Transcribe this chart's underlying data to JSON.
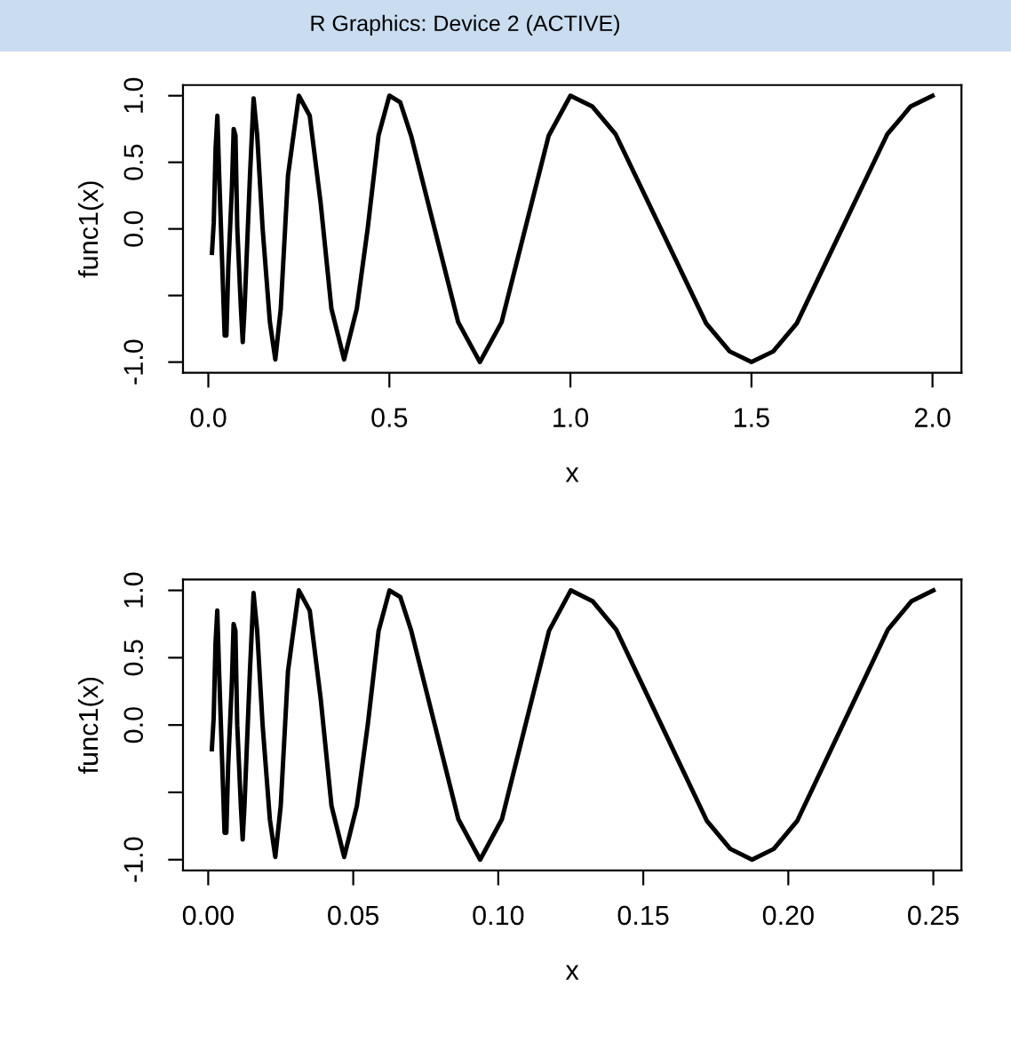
{
  "chart_data": [
    {
      "type": "line",
      "annotations": [
        "R Graphics: Device 2 (ACTIVE)"
      ],
      "xlabel": "x",
      "ylabel": "func1(x)",
      "xlim": [
        -0.07,
        2.08
      ],
      "ylim": [
        -1.08,
        1.08
      ],
      "xticks": [
        {
          "value": 0,
          "label": "0.0"
        },
        {
          "value": 0.5,
          "label": "0.5"
        },
        {
          "value": 1,
          "label": "1.0"
        },
        {
          "value": 1.5,
          "label": "1.5"
        },
        {
          "value": 2,
          "label": "2.0"
        }
      ],
      "yticks": [
        {
          "value": -1,
          "label": "-1.0"
        },
        {
          "value": -0.5,
          "label": null
        },
        {
          "value": 0,
          "label": "0.0"
        },
        {
          "value": 0.5,
          "label": "0.5"
        },
        {
          "value": 1,
          "label": "1.0"
        }
      ],
      "grid": false,
      "marker": "none",
      "line_style": "solid",
      "series": [
        {
          "color": "#000000",
          "x": [
            0.01,
            0.015,
            0.02,
            0.025,
            0.03,
            0.035,
            0.04,
            0.045,
            0.05,
            0.055,
            0.065,
            0.07,
            0.075,
            0.08,
            0.09,
            0.095,
            0.1,
            0.115,
            0.125,
            0.135,
            0.15,
            0.17,
            0.185,
            0.2,
            0.22,
            0.25,
            0.28,
            0.31,
            0.34,
            0.375,
            0.41,
            0.44,
            0.47,
            0.5,
            0.53,
            0.56,
            0.625,
            0.69,
            0.75,
            0.81,
            0.875,
            0.94,
            1.0,
            1.06,
            1.125,
            1.25,
            1.375,
            1.44,
            1.5,
            1.56,
            1.625,
            1.75,
            1.875,
            1.94,
            2.0
          ],
          "values": [
            -0.18,
            0.05,
            0.6,
            0.85,
            0.4,
            0.0,
            -0.4,
            -0.8,
            -0.8,
            -0.3,
            0.3,
            0.75,
            0.7,
            0.0,
            -0.6,
            -0.85,
            -0.6,
            0.4,
            0.98,
            0.7,
            0.0,
            -0.7,
            -0.98,
            -0.6,
            0.4,
            1.0,
            0.85,
            0.2,
            -0.6,
            -0.98,
            -0.6,
            0.0,
            0.7,
            1.0,
            0.95,
            0.7,
            0.0,
            -0.7,
            -1.0,
            -0.7,
            0.0,
            0.7,
            1.0,
            0.92,
            0.71,
            0.0,
            -0.71,
            -0.92,
            -1.0,
            -0.92,
            -0.71,
            0.0,
            0.71,
            0.92,
            1.0
          ]
        }
      ]
    },
    {
      "type": "line",
      "xlabel": "x",
      "ylabel": "func1(x)",
      "xlim": [
        -0.0087,
        0.2597
      ],
      "ylim": [
        -1.08,
        1.08
      ],
      "xticks": [
        {
          "value": 0,
          "label": "0.00"
        },
        0.05,
        {
          "value": 0.1,
          "label": "0.10"
        },
        0.15,
        {
          "value": 0.2,
          "label": "0.20"
        },
        0.25
      ],
      "yticks": [
        {
          "value": -1,
          "label": "-1.0"
        },
        {
          "value": -0.5,
          "label": null
        },
        {
          "value": 0,
          "label": "0.0"
        },
        {
          "value": 0.5,
          "label": "0.5"
        },
        {
          "value": 1,
          "label": "1.0"
        }
      ],
      "grid": false,
      "marker": "none",
      "line_style": "solid",
      "series": [
        {
          "color": "#000000",
          "x": [
            0.00125,
            0.001875,
            0.0025,
            0.003125,
            0.00375,
            0.004375,
            0.005,
            0.005625,
            0.00625,
            0.006875,
            0.008125,
            0.00875,
            0.009375,
            0.01,
            0.01125,
            0.011875,
            0.0125,
            0.014375,
            0.015625,
            0.016875,
            0.01875,
            0.02125,
            0.023125,
            0.025,
            0.0275,
            0.03125,
            0.035,
            0.03875,
            0.0425,
            0.046875,
            0.05125,
            0.055,
            0.05875,
            0.0625,
            0.06625,
            0.07,
            0.078125,
            0.08625,
            0.09375,
            0.10125,
            0.109375,
            0.1175,
            0.125,
            0.1325,
            0.140625,
            0.15625,
            0.171875,
            0.18,
            0.1875,
            0.195,
            0.203125,
            0.21875,
            0.234375,
            0.2425,
            0.25
          ],
          "values": [
            -0.18,
            0.05,
            0.6,
            0.85,
            0.4,
            0.0,
            -0.4,
            -0.8,
            -0.8,
            -0.3,
            0.3,
            0.75,
            0.7,
            0.0,
            -0.6,
            -0.85,
            -0.6,
            0.4,
            0.98,
            0.7,
            0.0,
            -0.7,
            -0.98,
            -0.6,
            0.4,
            1.0,
            0.85,
            0.2,
            -0.6,
            -0.98,
            -0.6,
            0.0,
            0.7,
            1.0,
            0.95,
            0.7,
            0.0,
            -0.7,
            -1.0,
            -0.7,
            0.0,
            0.7,
            1.0,
            0.92,
            0.71,
            0.0,
            -0.71,
            -0.92,
            -1.0,
            -0.92,
            -0.71,
            0.0,
            0.71,
            0.92,
            1.0
          ]
        }
      ]
    }
  ]
}
